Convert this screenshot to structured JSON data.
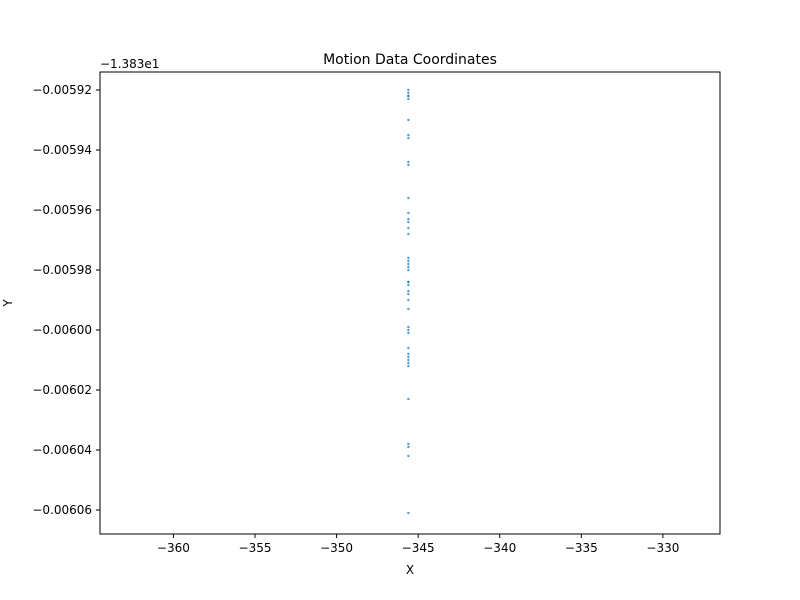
{
  "chart_data": {
    "type": "scatter",
    "title": "Motion Data Coordinates",
    "xlabel": "X",
    "ylabel": "Y",
    "y_offset_label": "−1.383e1",
    "xlim": [
      -364.5,
      -326.5
    ],
    "ylim": [
      -0.006068,
      -0.005914
    ],
    "xticks": [
      -360,
      -355,
      -350,
      -345,
      -340,
      -335,
      -330
    ],
    "xtick_labels": [
      "−360",
      "−355",
      "−350",
      "−345",
      "−340",
      "−335",
      "−330"
    ],
    "yticks": [
      -0.00592,
      -0.00594,
      -0.00596,
      -0.00598,
      -0.006,
      -0.00602,
      -0.00604,
      -0.00606
    ],
    "ytick_labels": [
      "−0.00592",
      "−0.00594",
      "−0.00596",
      "−0.00598",
      "−0.00600",
      "−0.00602",
      "−0.00604",
      "−0.00606"
    ],
    "grid": false,
    "marker_color": "#1f77b4",
    "x": [
      -345.6,
      -345.6,
      -345.6,
      -345.6,
      -345.6,
      -345.6,
      -345.6,
      -345.6,
      -345.6,
      -345.6,
      -345.6,
      -345.6,
      -345.6,
      -345.6,
      -345.6,
      -345.6,
      -345.6,
      -345.6,
      -345.6,
      -345.6,
      -345.6,
      -345.6,
      -345.6,
      -345.6,
      -345.6,
      -345.6,
      -345.6,
      -345.6,
      -345.6,
      -345.6,
      -345.6,
      -345.6,
      -345.6,
      -345.6,
      -345.6,
      -345.6,
      -345.6,
      -345.6,
      -345.6,
      -345.6,
      -345.6,
      -345.6
    ],
    "y": [
      -0.00592,
      -0.005921,
      -0.005922,
      -0.005922,
      -0.005923,
      -0.00593,
      -0.005935,
      -0.005936,
      -0.005944,
      -0.005945,
      -0.005956,
      -0.005961,
      -0.005963,
      -0.005964,
      -0.005966,
      -0.005968,
      -0.005976,
      -0.005977,
      -0.005978,
      -0.005979,
      -0.00598,
      -0.005984,
      -0.005984,
      -0.005985,
      -0.005987,
      -0.005988,
      -0.00599,
      -0.005993,
      -0.005999,
      -0.006,
      -0.006001,
      -0.006006,
      -0.006008,
      -0.006009,
      -0.00601,
      -0.006011,
      -0.006012,
      -0.006023,
      -0.006038,
      -0.006039,
      -0.006042,
      -0.006061
    ]
  }
}
